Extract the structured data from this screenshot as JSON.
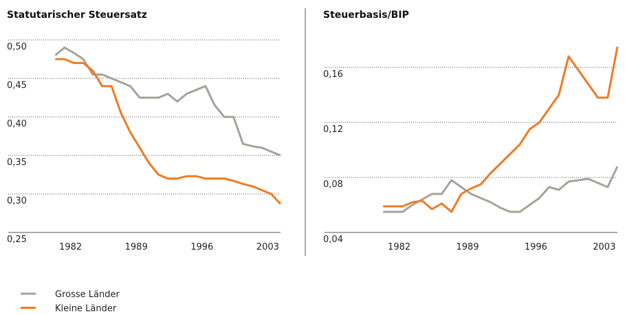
{
  "chart_data": [
    {
      "type": "line",
      "title": "Statutarischer Steuersatz",
      "x": [
        1980,
        1981,
        1982,
        1983,
        1984,
        1985,
        1986,
        1987,
        1988,
        1989,
        1990,
        1991,
        1992,
        1993,
        1994,
        1995,
        1996,
        1997,
        1998,
        1999,
        2000,
        2001,
        2002,
        2003,
        2004
      ],
      "xlim": [
        1975,
        2004
      ],
      "xticks": [
        1982,
        1989,
        1996,
        2003
      ],
      "ylim": [
        0.25,
        0.5
      ],
      "yticks": [
        {
          "value": 0.25,
          "label": "0,25"
        },
        {
          "value": 0.3,
          "label": "0,30"
        },
        {
          "value": 0.35,
          "label": "0,35"
        },
        {
          "value": 0.4,
          "label": "0,40"
        },
        {
          "value": 0.45,
          "label": "0,45"
        },
        {
          "value": 0.5,
          "label": "0,50"
        }
      ],
      "grid": true,
      "series": [
        {
          "name": "Grosse Länder",
          "color": "#a3a398",
          "values": [
            0.48,
            0.49,
            0.483,
            0.475,
            0.455,
            0.455,
            0.45,
            0.445,
            0.44,
            0.425,
            0.425,
            0.425,
            0.43,
            0.42,
            0.43,
            0.435,
            0.44,
            0.415,
            0.4,
            0.4,
            0.365,
            0.362,
            0.36,
            0.355,
            0.35
          ]
        },
        {
          "name": "Kleine Länder",
          "color": "#f07a22",
          "values": [
            0.475,
            0.475,
            0.47,
            0.47,
            0.46,
            0.44,
            0.44,
            0.405,
            0.38,
            0.36,
            0.34,
            0.325,
            0.32,
            0.32,
            0.323,
            0.323,
            0.32,
            0.32,
            0.32,
            0.317,
            0.313,
            0.31,
            0.305,
            0.3,
            0.287
          ]
        }
      ]
    },
    {
      "type": "line",
      "title": "Steuerbasis/BIP",
      "x": [
        1980,
        1981,
        1982,
        1983,
        1984,
        1985,
        1986,
        1987,
        1988,
        1989,
        1990,
        1991,
        1992,
        1993,
        1994,
        1995,
        1996,
        1997,
        1998,
        1999,
        2000,
        2001,
        2002,
        2003,
        2004
      ],
      "xlim": [
        1974,
        2004
      ],
      "xticks": [
        1982,
        1989,
        1996,
        2003
      ],
      "ylim": [
        0.04,
        0.18
      ],
      "yticks": [
        {
          "value": 0.04,
          "label": "0,04"
        },
        {
          "value": 0.08,
          "label": "0,08"
        },
        {
          "value": 0.12,
          "label": "0,12"
        },
        {
          "value": 0.16,
          "label": "0,16"
        }
      ],
      "grid": true,
      "series": [
        {
          "color": "#a3a398",
          "values": [
            0.055,
            0.055,
            0.055,
            0.06,
            0.064,
            0.068,
            0.068,
            0.078,
            0.073,
            0.068,
            0.065,
            0.062,
            0.058,
            0.055,
            0.055,
            0.06,
            0.065,
            0.073,
            0.071,
            0.077,
            0.078,
            0.079,
            0.076,
            0.073,
            0.088
          ]
        },
        {
          "color": "#f07a22",
          "values": [
            0.059,
            0.059,
            0.059,
            0.062,
            0.063,
            0.057,
            0.061,
            0.055,
            0.068,
            0.072,
            0.075,
            0.083,
            0.09,
            0.097,
            0.104,
            0.115,
            0.12,
            0.13,
            0.14,
            0.168,
            0.158,
            0.148,
            0.138,
            0.138,
            0.175
          ]
        }
      ]
    }
  ]
}
